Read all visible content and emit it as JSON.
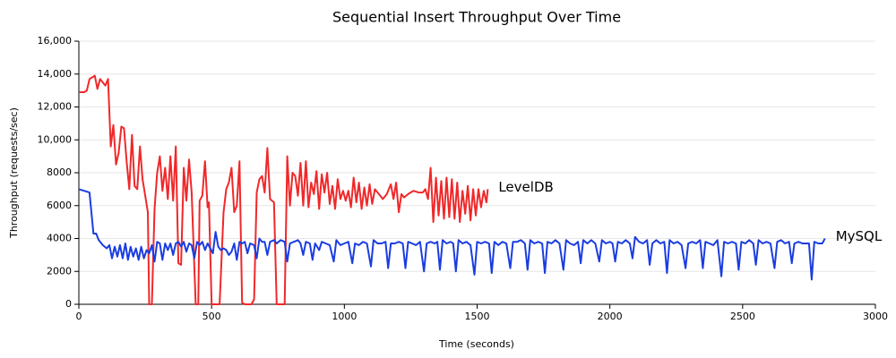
{
  "chart_data": {
    "type": "line",
    "title": "Sequential Insert Throughput Over Time",
    "x_label": "Time (seconds)",
    "y_label": "Throughput (requests/sec)",
    "xlim": [
      0,
      3000
    ],
    "xticks": [
      0,
      500,
      1000,
      1500,
      2000,
      2500,
      3000
    ],
    "ylim": [
      0,
      16000
    ],
    "yticks": [
      0,
      2000,
      4000,
      6000,
      8000,
      {
        "value": 10000,
        "label": "10,000"
      },
      {
        "value": 12000,
        "label": "12,000"
      },
      {
        "value": 14000,
        "label": "14,000"
      },
      {
        "value": 16000,
        "label": "16,000"
      }
    ],
    "grid": true,
    "series": [
      {
        "name": "LevelDB",
        "color": "#f0282a",
        "x": [
          0,
          20,
          30,
          40,
          60,
          70,
          80,
          100,
          110,
          120,
          130,
          140,
          150,
          160,
          170,
          180,
          190,
          200,
          210,
          220,
          230,
          240,
          250,
          260,
          265,
          275,
          285,
          295,
          305,
          315,
          325,
          335,
          345,
          355,
          365,
          375,
          385,
          395,
          405,
          415,
          425,
          440,
          450,
          455,
          465,
          475,
          485,
          490,
          500,
          510,
          530,
          545,
          555,
          565,
          575,
          585,
          595,
          605,
          615,
          625,
          650,
          660,
          670,
          680,
          690,
          700,
          710,
          720,
          735,
          745,
          760,
          775,
          785,
          795,
          805,
          815,
          825,
          835,
          845,
          855,
          865,
          875,
          885,
          895,
          905,
          915,
          925,
          935,
          945,
          955,
          965,
          975,
          985,
          995,
          1005,
          1015,
          1025,
          1035,
          1045,
          1055,
          1065,
          1075,
          1085,
          1095,
          1105,
          1115,
          1130,
          1145,
          1160,
          1175,
          1185,
          1195,
          1205,
          1215,
          1225,
          1240,
          1260,
          1280,
          1295,
          1305,
          1315,
          1325,
          1335,
          1345,
          1355,
          1365,
          1375,
          1385,
          1395,
          1405,
          1415,
          1425,
          1435,
          1445,
          1455,
          1465,
          1475,
          1485,
          1495,
          1505,
          1515,
          1525,
          1535,
          1540
        ],
        "values": [
          12900,
          12900,
          13000,
          13700,
          13900,
          13100,
          13700,
          13300,
          13700,
          9600,
          10900,
          8500,
          9200,
          10800,
          10700,
          8700,
          7000,
          10300,
          7200,
          7000,
          9600,
          7600,
          6600,
          5600,
          0,
          0,
          5800,
          8000,
          9000,
          6900,
          8300,
          6400,
          9000,
          6300,
          9600,
          2500,
          2400,
          8300,
          6300,
          8800,
          6800,
          0,
          0,
          6300,
          6600,
          8700,
          5900,
          6200,
          0,
          0,
          0,
          5600,
          7000,
          7400,
          8300,
          5600,
          6000,
          8700,
          100,
          0,
          0,
          300,
          6800,
          7600,
          7800,
          6800,
          9500,
          6400,
          6200,
          0,
          0,
          0,
          9000,
          6000,
          8000,
          7800,
          6600,
          8600,
          6000,
          8700,
          5900,
          7400,
          6700,
          8100,
          5800,
          7900,
          6800,
          8000,
          6100,
          7200,
          5800,
          7600,
          6400,
          6900,
          6300,
          6900,
          5900,
          7700,
          6200,
          7400,
          5800,
          7100,
          6000,
          7300,
          6100,
          7000,
          6700,
          6400,
          6700,
          7300,
          6400,
          7400,
          5600,
          6700,
          6500,
          6700,
          6900,
          6800,
          6800,
          7000,
          6400,
          8300,
          5000,
          7700,
          5400,
          7500,
          5200,
          7700,
          5300,
          7600,
          5200,
          7400,
          5000,
          6900,
          5500,
          7200,
          5100,
          7000,
          5400,
          7000,
          5900,
          6900,
          6200,
          7000
        ]
      },
      {
        "name": "MySQL",
        "color": "#1a3de0",
        "x": [
          0,
          20,
          40,
          55,
          65,
          75,
          90,
          105,
          115,
          125,
          135,
          145,
          155,
          165,
          175,
          185,
          195,
          205,
          215,
          225,
          235,
          245,
          255,
          265,
          275,
          285,
          295,
          305,
          315,
          325,
          335,
          345,
          355,
          365,
          375,
          385,
          395,
          405,
          415,
          425,
          435,
          445,
          455,
          465,
          475,
          485,
          495,
          505,
          515,
          525,
          535,
          545,
          555,
          565,
          575,
          585,
          595,
          605,
          615,
          625,
          635,
          645,
          660,
          670,
          680,
          690,
          700,
          710,
          720,
          735,
          745,
          760,
          775,
          785,
          795,
          810,
          825,
          835,
          845,
          855,
          870,
          880,
          890,
          905,
          915,
          930,
          945,
          960,
          970,
          985,
          1000,
          1015,
          1030,
          1040,
          1055,
          1070,
          1085,
          1100,
          1110,
          1125,
          1140,
          1155,
          1165,
          1175,
          1190,
          1205,
          1220,
          1230,
          1240,
          1255,
          1270,
          1285,
          1300,
          1310,
          1325,
          1340,
          1350,
          1360,
          1370,
          1385,
          1400,
          1410,
          1420,
          1430,
          1445,
          1460,
          1475,
          1490,
          1500,
          1515,
          1530,
          1545,
          1555,
          1565,
          1580,
          1595,
          1610,
          1625,
          1635,
          1650,
          1665,
          1680,
          1690,
          1700,
          1715,
          1730,
          1745,
          1755,
          1765,
          1780,
          1795,
          1810,
          1825,
          1835,
          1850,
          1865,
          1880,
          1890,
          1900,
          1915,
          1930,
          1945,
          1960,
          1970,
          1985,
          2000,
          2010,
          2020,
          2030,
          2045,
          2060,
          2075,
          2085,
          2095,
          2110,
          2125,
          2140,
          2150,
          2160,
          2175,
          2190,
          2205,
          2215,
          2225,
          2240,
          2255,
          2270,
          2285,
          2295,
          2310,
          2325,
          2340,
          2350,
          2360,
          2375,
          2390,
          2405,
          2420,
          2430,
          2445,
          2460,
          2475,
          2485,
          2495,
          2510,
          2525,
          2540,
          2550,
          2560,
          2575,
          2590,
          2605,
          2620,
          2630,
          2645,
          2660,
          2675,
          2685,
          2695,
          2710,
          2725,
          2740,
          2750,
          2760,
          2770,
          2785,
          2800,
          2810
        ],
        "values": [
          7000,
          6900,
          6800,
          4300,
          4300,
          3900,
          3600,
          3400,
          3600,
          2800,
          3500,
          2900,
          3600,
          2800,
          3700,
          2700,
          3500,
          2900,
          3400,
          2700,
          3500,
          2800,
          3300,
          3100,
          3600,
          2600,
          3800,
          3700,
          2700,
          3700,
          3300,
          3700,
          3000,
          3700,
          3800,
          3500,
          3800,
          3200,
          3700,
          3600,
          2800,
          3800,
          3600,
          3800,
          3300,
          3700,
          3400,
          3100,
          4400,
          3500,
          3300,
          3400,
          3300,
          3000,
          3200,
          3700,
          2700,
          3800,
          3700,
          3800,
          3100,
          3700,
          3600,
          2800,
          4000,
          3800,
          3800,
          3000,
          3800,
          3900,
          3700,
          3900,
          3800,
          2600,
          3700,
          3800,
          3900,
          3700,
          3000,
          3800,
          3700,
          2700,
          3700,
          3300,
          3800,
          3700,
          3600,
          2600,
          3900,
          3600,
          3700,
          3800,
          2500,
          3700,
          3600,
          3800,
          3700,
          2300,
          3900,
          3700,
          3700,
          3800,
          2200,
          3700,
          3700,
          3800,
          3700,
          2200,
          3800,
          3700,
          3600,
          3800,
          2000,
          3700,
          3800,
          3700,
          3800,
          2100,
          3900,
          3700,
          3800,
          3700,
          2000,
          3900,
          3700,
          3800,
          3600,
          1800,
          3800,
          3700,
          3800,
          3700,
          1900,
          3800,
          3600,
          3800,
          3700,
          2200,
          3800,
          3800,
          3900,
          3700,
          2100,
          3900,
          3700,
          3800,
          3700,
          1900,
          3800,
          3700,
          3900,
          3700,
          2100,
          3900,
          3700,
          3600,
          3800,
          2500,
          3900,
          3700,
          3900,
          3700,
          2600,
          3900,
          3700,
          3800,
          3700,
          2600,
          3800,
          3700,
          3900,
          3700,
          2800,
          4100,
          3800,
          3700,
          3900,
          2400,
          3700,
          3900,
          3700,
          3800,
          1900,
          3900,
          3700,
          3800,
          3600,
          2200,
          3700,
          3800,
          3700,
          3900,
          2200,
          3800,
          3700,
          3600,
          3900,
          1700,
          3800,
          3700,
          3800,
          3700,
          2100,
          3800,
          3700,
          3900,
          3700,
          2400,
          3900,
          3700,
          3800,
          3700,
          2200,
          3800,
          3900,
          3700,
          3800,
          2500,
          3700,
          3800,
          3700,
          3700,
          3700,
          1500,
          3800,
          3700,
          3700,
          4000
        ]
      }
    ]
  }
}
